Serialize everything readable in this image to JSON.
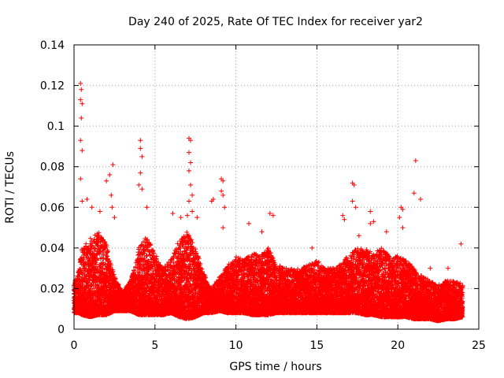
{
  "chart_data": {
    "type": "scatter",
    "title": "Day 240 of 2025, Rate Of TEC Index for receiver yar2",
    "xlabel": "GPS time / hours",
    "ylabel": "ROTI / TECUs",
    "xlim": [
      0,
      25
    ],
    "ylim": [
      0,
      0.14
    ],
    "x_ticks": [
      0,
      5,
      10,
      15,
      20,
      25
    ],
    "y_ticks": [
      0,
      0.02,
      0.04,
      0.06,
      0.08,
      0.1,
      0.12,
      0.14
    ],
    "grid": true,
    "marker": "+",
    "color": "#ff0000",
    "sample_interval_hours": 0.005,
    "envelope": {
      "x": [
        0,
        0.3,
        0.5,
        1.0,
        1.5,
        2.0,
        2.5,
        3.0,
        3.5,
        4.0,
        4.5,
        5.0,
        5.5,
        6.0,
        6.5,
        7.0,
        7.5,
        8.0,
        8.5,
        9.0,
        9.5,
        10.0,
        10.5,
        11.0,
        11.5,
        12.0,
        12.5,
        13.0,
        13.5,
        14.0,
        14.5,
        15.0,
        15.5,
        16.0,
        16.5,
        17.0,
        17.5,
        18.0,
        18.5,
        19.0,
        19.5,
        20.0,
        20.5,
        21.0,
        21.5,
        22.0,
        22.5,
        23.0,
        23.5,
        24.0
      ],
      "low": [
        0.008,
        0.008,
        0.007,
        0.006,
        0.007,
        0.007,
        0.009,
        0.009,
        0.009,
        0.007,
        0.007,
        0.007,
        0.007,
        0.008,
        0.006,
        0.005,
        0.006,
        0.008,
        0.008,
        0.009,
        0.008,
        0.008,
        0.008,
        0.007,
        0.007,
        0.007,
        0.008,
        0.008,
        0.008,
        0.008,
        0.008,
        0.008,
        0.008,
        0.008,
        0.008,
        0.008,
        0.008,
        0.007,
        0.007,
        0.006,
        0.006,
        0.006,
        0.006,
        0.005,
        0.005,
        0.005,
        0.004,
        0.005,
        0.005,
        0.006
      ],
      "high": [
        0.022,
        0.03,
        0.04,
        0.045,
        0.048,
        0.042,
        0.026,
        0.018,
        0.024,
        0.04,
        0.046,
        0.038,
        0.03,
        0.035,
        0.044,
        0.048,
        0.04,
        0.028,
        0.02,
        0.026,
        0.032,
        0.036,
        0.034,
        0.038,
        0.036,
        0.04,
        0.032,
        0.03,
        0.03,
        0.03,
        0.032,
        0.034,
        0.03,
        0.03,
        0.032,
        0.038,
        0.04,
        0.04,
        0.038,
        0.04,
        0.036,
        0.036,
        0.034,
        0.03,
        0.026,
        0.024,
        0.022,
        0.024,
        0.024,
        0.022
      ]
    },
    "outliers": [
      {
        "x": 0.4,
        "y": 0.121
      },
      {
        "x": 0.45,
        "y": 0.118
      },
      {
        "x": 0.4,
        "y": 0.113
      },
      {
        "x": 0.5,
        "y": 0.111
      },
      {
        "x": 0.45,
        "y": 0.104
      },
      {
        "x": 0.4,
        "y": 0.093
      },
      {
        "x": 0.5,
        "y": 0.088
      },
      {
        "x": 0.4,
        "y": 0.074
      },
      {
        "x": 0.5,
        "y": 0.063
      },
      {
        "x": 0.8,
        "y": 0.064
      },
      {
        "x": 1.1,
        "y": 0.06
      },
      {
        "x": 1.6,
        "y": 0.058
      },
      {
        "x": 2.0,
        "y": 0.073
      },
      {
        "x": 2.2,
        "y": 0.076
      },
      {
        "x": 2.3,
        "y": 0.066
      },
      {
        "x": 2.4,
        "y": 0.081
      },
      {
        "x": 2.35,
        "y": 0.06
      },
      {
        "x": 2.5,
        "y": 0.055
      },
      {
        "x": 4.1,
        "y": 0.093
      },
      {
        "x": 4.1,
        "y": 0.089
      },
      {
        "x": 4.2,
        "y": 0.085
      },
      {
        "x": 4.1,
        "y": 0.077
      },
      {
        "x": 4.0,
        "y": 0.071
      },
      {
        "x": 4.2,
        "y": 0.069
      },
      {
        "x": 4.5,
        "y": 0.06
      },
      {
        "x": 6.1,
        "y": 0.057
      },
      {
        "x": 6.6,
        "y": 0.055
      },
      {
        "x": 7.1,
        "y": 0.094
      },
      {
        "x": 7.2,
        "y": 0.093
      },
      {
        "x": 7.1,
        "y": 0.087
      },
      {
        "x": 7.2,
        "y": 0.082
      },
      {
        "x": 7.1,
        "y": 0.078
      },
      {
        "x": 7.2,
        "y": 0.071
      },
      {
        "x": 7.3,
        "y": 0.066
      },
      {
        "x": 7.1,
        "y": 0.063
      },
      {
        "x": 7.3,
        "y": 0.058
      },
      {
        "x": 7.0,
        "y": 0.056
      },
      {
        "x": 7.6,
        "y": 0.055
      },
      {
        "x": 8.5,
        "y": 0.063
      },
      {
        "x": 8.6,
        "y": 0.064
      },
      {
        "x": 9.1,
        "y": 0.074
      },
      {
        "x": 9.2,
        "y": 0.073
      },
      {
        "x": 9.1,
        "y": 0.068
      },
      {
        "x": 9.2,
        "y": 0.066
      },
      {
        "x": 9.3,
        "y": 0.06
      },
      {
        "x": 9.2,
        "y": 0.05
      },
      {
        "x": 10.8,
        "y": 0.052
      },
      {
        "x": 11.6,
        "y": 0.048
      },
      {
        "x": 12.1,
        "y": 0.057
      },
      {
        "x": 12.3,
        "y": 0.056
      },
      {
        "x": 14.7,
        "y": 0.04
      },
      {
        "x": 16.6,
        "y": 0.056
      },
      {
        "x": 16.7,
        "y": 0.054
      },
      {
        "x": 17.2,
        "y": 0.072
      },
      {
        "x": 17.3,
        "y": 0.071
      },
      {
        "x": 17.2,
        "y": 0.063
      },
      {
        "x": 17.4,
        "y": 0.06
      },
      {
        "x": 17.6,
        "y": 0.046
      },
      {
        "x": 18.3,
        "y": 0.058
      },
      {
        "x": 18.3,
        "y": 0.052
      },
      {
        "x": 18.5,
        "y": 0.053
      },
      {
        "x": 19.3,
        "y": 0.048
      },
      {
        "x": 20.2,
        "y": 0.06
      },
      {
        "x": 20.3,
        "y": 0.059
      },
      {
        "x": 20.1,
        "y": 0.055
      },
      {
        "x": 20.3,
        "y": 0.05
      },
      {
        "x": 21.0,
        "y": 0.067
      },
      {
        "x": 21.1,
        "y": 0.083
      },
      {
        "x": 21.4,
        "y": 0.064
      },
      {
        "x": 22.0,
        "y": 0.03
      },
      {
        "x": 23.1,
        "y": 0.03
      },
      {
        "x": 23.9,
        "y": 0.042
      }
    ]
  }
}
